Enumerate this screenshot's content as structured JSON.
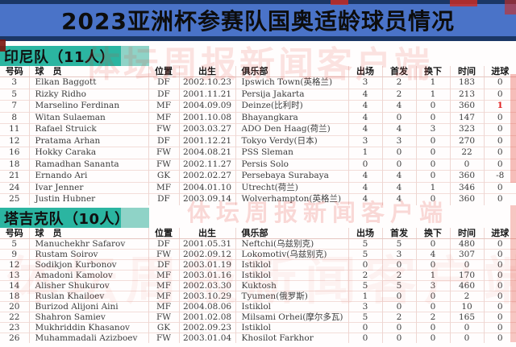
{
  "title": "2023亚洲杯参赛队国奥适龄球员情况",
  "columns": [
    "号码",
    "球　员",
    "位置",
    "出生",
    "俱乐部",
    "出场",
    "首发",
    "换下",
    "时间",
    "进球"
  ],
  "sections": [
    {
      "team": "印尼队（11人）",
      "rows": [
        [
          "3",
          "Elkan Baggott",
          "DF",
          "2002.10.23",
          "Ipswich Town(英格兰)",
          "3",
          "2",
          "1",
          "183",
          "0"
        ],
        [
          "5",
          "Rizky Ridho",
          "DF",
          "2001.11.21",
          "Persija Jakarta",
          "4",
          "2",
          "1",
          "213",
          "0"
        ],
        [
          "7",
          "Marselino Ferdinan",
          "MF",
          "2004.09.09",
          "Deinze(比利时)",
          "4",
          "4",
          "0",
          "360",
          "1"
        ],
        [
          "8",
          "Witan Sulaeman",
          "MF",
          "2001.10.08",
          "Bhayangkara",
          "4",
          "0",
          "0",
          "147",
          "0"
        ],
        [
          "11",
          "Rafael Struick",
          "FW",
          "2003.03.27",
          "ADO Den Haag(荷兰)",
          "4",
          "4",
          "3",
          "323",
          "0"
        ],
        [
          "12",
          "Pratama Arhan",
          "DF",
          "2001.12.21",
          "Tokyo Verdy(日本)",
          "3",
          "3",
          "0",
          "270",
          "0"
        ],
        [
          "16",
          "Hokky Caraka",
          "FW",
          "2004.08.21",
          "PSS Sleman",
          "1",
          "0",
          "0",
          "22",
          "0"
        ],
        [
          "18",
          "Ramadhan Sananta",
          "FW",
          "2002.11.27",
          "Persis Solo",
          "0",
          "0",
          "0",
          "0",
          "0"
        ],
        [
          "21",
          "Ernando Ari",
          "GK",
          "2002.02.27",
          "Persebaya Surabaya",
          "4",
          "4",
          "0",
          "360",
          "-8"
        ],
        [
          "24",
          "Ivar Jenner",
          "MF",
          "2004.01.10",
          "Utrecht(荷兰)",
          "4",
          "4",
          "1",
          "346",
          "0"
        ],
        [
          "25",
          "Justin Hubner",
          "DF",
          "2003.09.14",
          "Wolverhampton(英格兰)",
          "4",
          "4",
          "0",
          "360",
          "0"
        ]
      ]
    },
    {
      "team": "塔吉克队（10人）",
      "rows": [
        [
          "5",
          "Manuchekhr Safarov",
          "DF",
          "2001.05.31",
          "Neftchi(乌兹别克)",
          "5",
          "5",
          "0",
          "480",
          "0"
        ],
        [
          "9",
          "Rustam Soirov",
          "FW",
          "2002.09.12",
          "Lokomotiv(乌兹别克)",
          "5",
          "3",
          "4",
          "307",
          "0"
        ],
        [
          "12",
          "Sodikjon Kurbonov",
          "DF",
          "2003.01.19",
          "Istiklol",
          "0",
          "0",
          "0",
          "0",
          "0"
        ],
        [
          "13",
          "Amadoni Kamolov",
          "MF",
          "2003.01.16",
          "Istiklol",
          "2",
          "2",
          "1",
          "170",
          "0"
        ],
        [
          "14",
          "Alisher Shukurov",
          "MF",
          "2002.03.30",
          "Kuktosh",
          "5",
          "5",
          "3",
          "460",
          "0"
        ],
        [
          "18",
          "Ruslan Khailoev",
          "MF",
          "2003.10.29",
          "Tyumen(俄罗斯)",
          "1",
          "0",
          "0",
          "2",
          "0"
        ],
        [
          "20",
          "Burizod Alijoni Aini",
          "MF",
          "2004.08.06",
          "Istiklol",
          "3",
          "0",
          "0",
          "10",
          "0"
        ],
        [
          "22",
          "Shahron Samiev",
          "FW",
          "2001.02.08",
          "Milsami Orhei(摩尔多瓦)",
          "5",
          "2",
          "2",
          "165",
          "0"
        ],
        [
          "23",
          "Mukhriddin Khasanov",
          "GK",
          "2002.09.23",
          "Istiklol",
          "0",
          "0",
          "0",
          "0",
          "0"
        ],
        [
          "26",
          "Muhammadali Azizboev",
          "FW",
          "2003.01.04",
          "Khosilot Farkhor",
          "0",
          "0",
          "0",
          "0",
          "0"
        ]
      ]
    }
  ],
  "red_cells": [
    [
      0,
      2,
      9
    ]
  ],
  "watermark": {
    "text": "体坛周报新闻客户端",
    "color": "#e3362a"
  },
  "colors": {
    "title_bg": "#4a73c8",
    "title_border": "#1b3766",
    "team_bar": "#2bb5a1",
    "team_bar_light": "#8fd3c7",
    "goal_highlight": "#e02020"
  }
}
